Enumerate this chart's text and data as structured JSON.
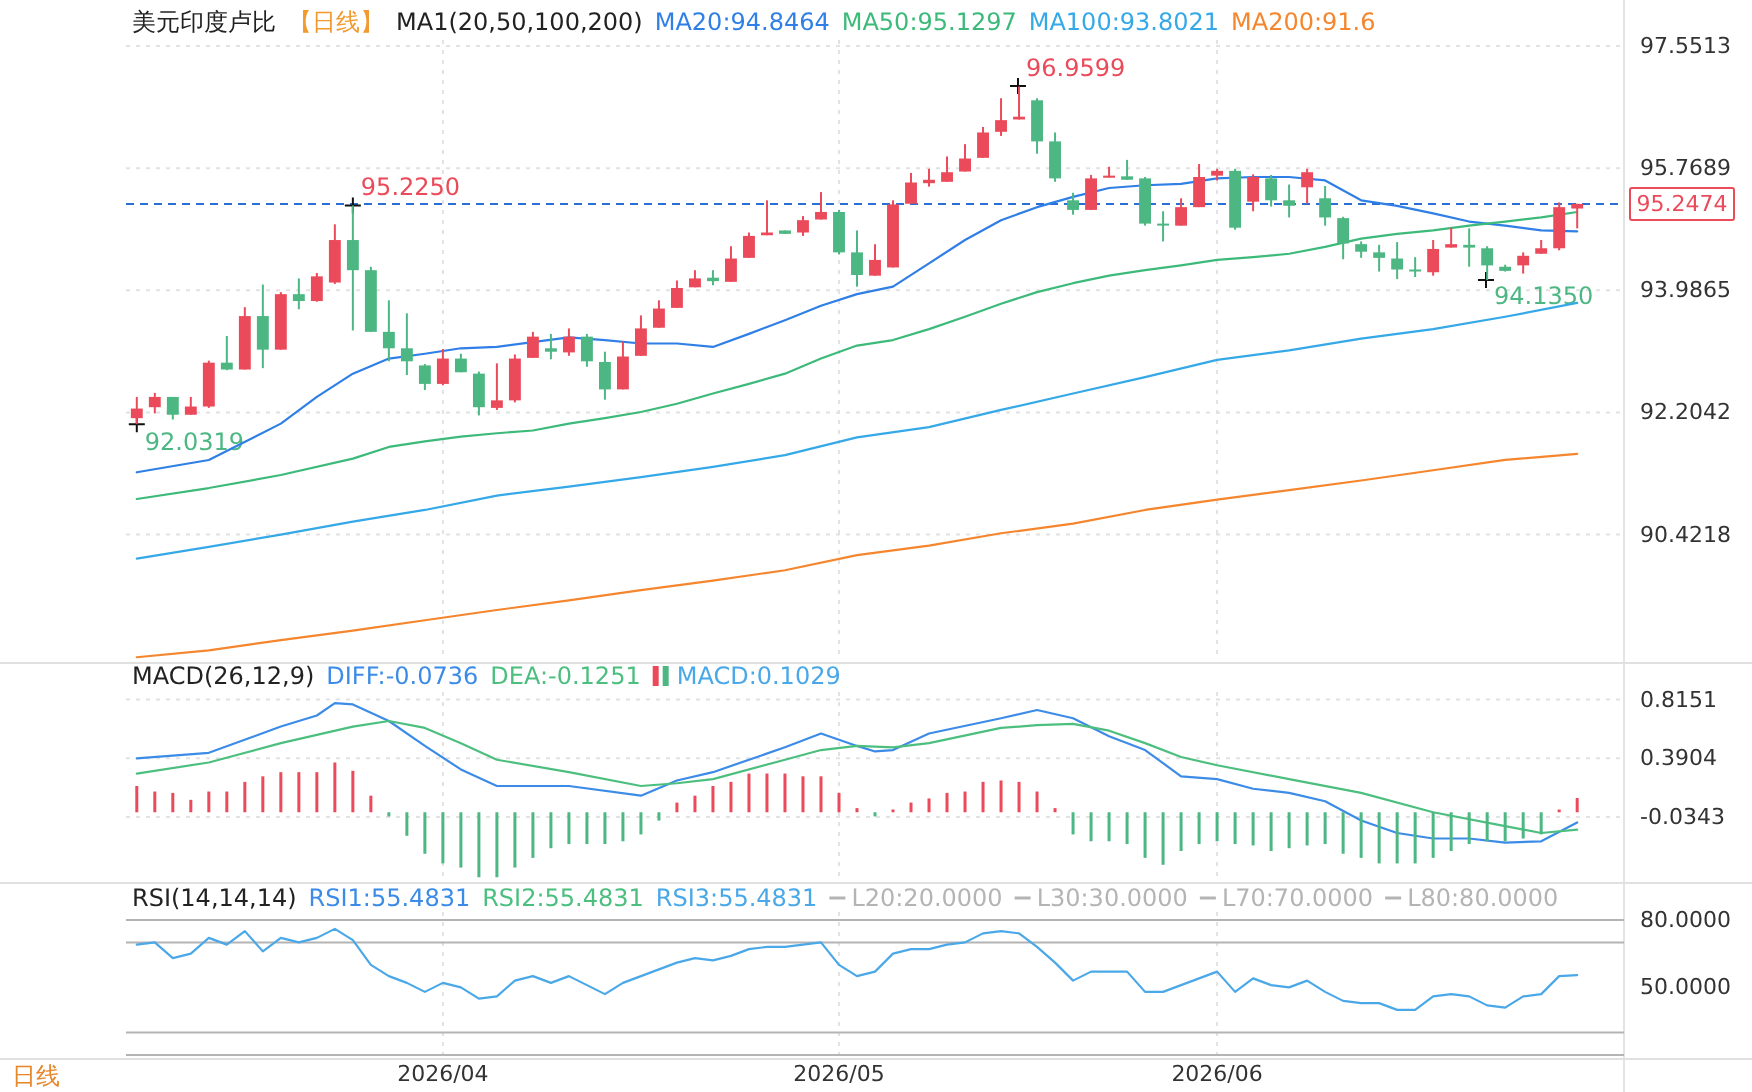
{
  "chart_data": [
    {
      "type": "candlestick",
      "title": "美元印度卢比",
      "subtitle": "【日线】",
      "legend_title": "MA1(20,50,100,200)",
      "legend": "top",
      "grid": true,
      "tick_labels": "y",
      "categories": [
        null,
        null,
        null,
        null,
        null,
        null,
        null,
        null,
        null,
        null,
        null,
        null,
        null,
        null,
        null,
        null,
        null,
        "2026/04",
        null,
        null,
        null,
        null,
        null,
        null,
        null,
        null,
        null,
        null,
        null,
        null,
        null,
        null,
        null,
        null,
        null,
        null,
        null,
        null,
        null,
        "2026/05",
        null,
        null,
        null,
        null,
        null,
        null,
        null,
        null,
        null,
        null,
        null,
        null,
        null,
        null,
        null,
        null,
        null,
        null,
        null,
        null,
        "2026/06",
        null,
        null,
        null,
        null,
        null,
        null,
        null,
        null,
        null,
        null,
        null,
        null,
        null,
        null,
        null,
        null,
        null,
        null,
        null,
        null
      ],
      "ohlc": [
        [
          92.12,
          92.43,
          92.0319,
          92.26
        ],
        [
          92.28,
          92.49,
          92.19,
          92.43
        ],
        [
          92.43,
          92.43,
          92.1,
          92.17
        ],
        [
          92.17,
          92.43,
          92.17,
          92.29
        ],
        [
          92.29,
          92.96,
          92.27,
          92.93
        ],
        [
          92.93,
          93.32,
          92.82,
          92.83
        ],
        [
          92.83,
          93.74,
          92.83,
          93.61
        ],
        [
          93.61,
          94.07,
          92.85,
          93.12
        ],
        [
          93.12,
          93.96,
          93.12,
          93.93
        ],
        [
          93.93,
          94.16,
          93.71,
          93.83
        ],
        [
          93.83,
          94.24,
          93.82,
          94.19
        ],
        [
          94.1,
          94.95,
          94.08,
          94.72
        ],
        [
          94.72,
          95.225,
          93.4,
          94.28
        ],
        [
          94.28,
          94.33,
          93.38,
          93.38
        ],
        [
          93.38,
          93.84,
          92.95,
          93.14
        ],
        [
          93.14,
          93.65,
          92.75,
          92.95
        ],
        [
          92.89,
          92.91,
          92.53,
          92.62
        ],
        [
          92.62,
          93.13,
          92.6,
          92.99
        ],
        [
          92.99,
          93.06,
          92.79,
          92.79
        ],
        [
          92.77,
          92.8,
          92.16,
          92.28
        ],
        [
          92.27,
          92.92,
          92.24,
          92.38
        ],
        [
          92.38,
          93.05,
          92.35,
          92.99
        ],
        [
          93.0,
          93.38,
          93.0,
          93.31
        ],
        [
          93.14,
          93.35,
          92.98,
          93.09
        ],
        [
          93.08,
          93.43,
          93.03,
          93.31
        ],
        [
          93.31,
          93.35,
          92.87,
          92.95
        ],
        [
          92.94,
          93.09,
          92.39,
          92.54
        ],
        [
          92.54,
          93.24,
          92.54,
          93.02
        ],
        [
          93.03,
          93.62,
          93.03,
          93.43
        ],
        [
          93.44,
          93.84,
          93.44,
          93.72
        ],
        [
          93.73,
          94.13,
          93.73,
          94.02
        ],
        [
          94.03,
          94.28,
          94.03,
          94.16
        ],
        [
          94.17,
          94.28,
          94.06,
          94.12
        ],
        [
          94.11,
          94.63,
          94.11,
          94.45
        ],
        [
          94.46,
          94.83,
          94.46,
          94.78
        ],
        [
          94.79,
          95.3,
          94.79,
          94.83
        ],
        [
          94.86,
          94.86,
          94.81,
          94.81
        ],
        [
          94.83,
          95.07,
          94.78,
          95.01
        ],
        [
          95.02,
          95.42,
          95.02,
          95.13
        ],
        [
          95.13,
          95.16,
          94.51,
          94.54
        ],
        [
          94.54,
          94.86,
          94.04,
          94.21
        ],
        [
          94.2,
          94.66,
          94.2,
          94.43
        ],
        [
          94.32,
          95.3,
          94.32,
          95.24
        ],
        [
          95.25,
          95.7,
          95.25,
          95.56
        ],
        [
          95.55,
          95.76,
          95.5,
          95.6
        ],
        [
          95.57,
          95.94,
          95.57,
          95.71
        ],
        [
          95.72,
          96.12,
          95.72,
          95.91
        ],
        [
          95.92,
          96.37,
          95.92,
          96.29
        ],
        [
          96.3,
          96.79,
          96.24,
          96.47
        ],
        [
          96.48,
          96.9599,
          96.48,
          96.52
        ],
        [
          96.76,
          96.79,
          95.98,
          96.16
        ],
        [
          96.16,
          96.29,
          95.57,
          95.62
        ],
        [
          95.3,
          95.41,
          95.09,
          95.16
        ],
        [
          95.16,
          95.67,
          95.16,
          95.62
        ],
        [
          95.63,
          95.79,
          95.63,
          95.66
        ],
        [
          95.65,
          95.89,
          95.6,
          95.6
        ],
        [
          95.62,
          95.64,
          94.93,
          94.96
        ],
        [
          94.96,
          95.14,
          94.7,
          94.95
        ],
        [
          94.93,
          95.33,
          94.93,
          95.2
        ],
        [
          95.2,
          95.83,
          95.2,
          95.64
        ],
        [
          95.66,
          95.76,
          95.59,
          95.73
        ],
        [
          95.73,
          95.76,
          94.87,
          94.9
        ],
        [
          95.28,
          95.68,
          95.14,
          95.64
        ],
        [
          95.62,
          95.67,
          95.21,
          95.3
        ],
        [
          95.3,
          95.53,
          95.05,
          95.22
        ],
        [
          95.49,
          95.76,
          95.25,
          95.71
        ],
        [
          95.33,
          95.51,
          94.93,
          95.05
        ],
        [
          95.04,
          95.06,
          94.44,
          94.67
        ],
        [
          94.66,
          94.7,
          94.46,
          94.55
        ],
        [
          94.54,
          94.65,
          94.26,
          94.46
        ],
        [
          94.45,
          94.69,
          94.15,
          94.29
        ],
        [
          94.29,
          94.47,
          94.18,
          94.27
        ],
        [
          94.25,
          94.72,
          94.2,
          94.59
        ],
        [
          94.61,
          94.9,
          94.61,
          94.66
        ],
        [
          94.65,
          94.89,
          94.33,
          94.61
        ],
        [
          94.6,
          94.63,
          94.135,
          94.35
        ],
        [
          94.33,
          94.36,
          94.26,
          94.27
        ],
        [
          94.35,
          94.54,
          94.23,
          94.49
        ],
        [
          94.52,
          94.72,
          94.52,
          94.6
        ],
        [
          94.6,
          95.27,
          94.57,
          95.2
        ],
        [
          95.18,
          95.25,
          94.89,
          95.2474
        ]
      ],
      "colors": [
        "#eb4a5a",
        "#eb4a5a",
        "#4cb782",
        "#eb4a5a",
        "#eb4a5a",
        "#4cb782",
        "#eb4a5a",
        "#4cb782",
        "#eb4a5a",
        "#4cb782",
        "#eb4a5a",
        "#eb4a5a",
        "#4cb782",
        "#4cb782",
        "#4cb782",
        "#4cb782",
        "#4cb782",
        "#eb4a5a",
        "#4cb782",
        "#4cb782",
        "#eb4a5a",
        "#eb4a5a",
        "#eb4a5a",
        "#4cb782",
        "#eb4a5a",
        "#4cb782",
        "#4cb782",
        "#eb4a5a",
        "#eb4a5a",
        "#eb4a5a",
        "#eb4a5a",
        "#eb4a5a",
        "#4cb782",
        "#eb4a5a",
        "#eb4a5a",
        "#eb4a5a",
        "#4cb782",
        "#eb4a5a",
        "#eb4a5a",
        "#4cb782",
        "#4cb782",
        "#eb4a5a",
        "#eb4a5a",
        "#eb4a5a",
        "#eb4a5a",
        "#eb4a5a",
        "#eb4a5a",
        "#eb4a5a",
        "#eb4a5a",
        "#eb4a5a",
        "#4cb782",
        "#4cb782",
        "#4cb782",
        "#eb4a5a",
        "#eb4a5a",
        "#4cb782",
        "#4cb782",
        "#4cb782",
        "#eb4a5a",
        "#eb4a5a",
        "#eb4a5a",
        "#4cb782",
        "#eb4a5a",
        "#4cb782",
        "#4cb782",
        "#eb4a5a",
        "#4cb782",
        "#4cb782",
        "#4cb782",
        "#4cb782",
        "#4cb782",
        "#4cb782",
        "#eb4a5a",
        "#eb4a5a",
        "#4cb782",
        "#4cb782",
        "#4cb782",
        "#eb4a5a",
        "#eb4a5a",
        "#eb4a5a",
        "#eb4a5a"
      ],
      "series": [
        {
          "name": "MA20:94.8464",
          "type": "line",
          "color": "#2f7fe6",
          "values": [
            91.33,
            null,
            null,
            null,
            91.51,
            null,
            null,
            null,
            92.04,
            null,
            92.43,
            null,
            92.77,
            null,
            92.99,
            null,
            93.06,
            null,
            93.14,
            null,
            93.16,
            null,
            null,
            null,
            93.3,
            null,
            93.26,
            null,
            93.21,
            null,
            93.21,
            null,
            93.16,
            null,
            93.35,
            null,
            93.55,
            null,
            93.76,
            null,
            93.93,
            null,
            94.04,
            null,
            94.38,
            null,
            94.72,
            null,
            95.01,
            null,
            95.2,
            null,
            95.35,
            null,
            95.48,
            null,
            95.52,
            null,
            95.54,
            null,
            95.62,
            null,
            95.64,
            null,
            95.64,
            null,
            95.59,
            null,
            95.3,
            null,
            95.22,
            null,
            95.11,
            null,
            94.99,
            null,
            94.93,
            null,
            94.86,
            null,
            94.8464
          ]
        },
        {
          "name": "MA50:95.1297",
          "type": "line",
          "color": "#3dba7a",
          "values": [
            90.94,
            null,
            null,
            null,
            91.1,
            null,
            null,
            null,
            91.29,
            null,
            null,
            null,
            91.53,
            null,
            91.7,
            null,
            91.78,
            null,
            91.85,
            null,
            91.9,
            null,
            91.94,
            null,
            92.04,
            null,
            92.12,
            null,
            92.21,
            null,
            92.33,
            null,
            92.48,
            null,
            92.62,
            null,
            92.77,
            null,
            92.99,
            null,
            93.18,
            null,
            93.26,
            null,
            93.42,
            null,
            93.6,
            null,
            93.79,
            null,
            93.96,
            null,
            94.09,
            null,
            94.2,
            null,
            94.28,
            null,
            94.35,
            null,
            94.43,
            null,
            94.47,
            null,
            94.52,
            null,
            94.62,
            null,
            94.74,
            null,
            94.81,
            null,
            94.86,
            null,
            94.93,
            null,
            94.99,
            null,
            95.05,
            null,
            95.1297
          ]
        },
        {
          "name": "MA100:93.8021",
          "type": "line",
          "color": "#35a8e8",
          "values": [
            90.07,
            null,
            null,
            null,
            90.24,
            null,
            null,
            null,
            90.42,
            null,
            null,
            null,
            90.61,
            null,
            null,
            null,
            90.78,
            null,
            null,
            null,
            90.99,
            null,
            null,
            null,
            91.12,
            null,
            null,
            null,
            91.26,
            null,
            null,
            null,
            91.41,
            null,
            null,
            null,
            91.58,
            null,
            null,
            null,
            91.84,
            null,
            null,
            null,
            91.99,
            null,
            null,
            null,
            92.24,
            null,
            null,
            null,
            92.48,
            null,
            null,
            null,
            92.72,
            null,
            null,
            null,
            92.97,
            null,
            null,
            null,
            93.11,
            null,
            null,
            null,
            93.28,
            null,
            null,
            null,
            93.42,
            null,
            null,
            null,
            93.6,
            null,
            null,
            null,
            93.8021
          ]
        },
        {
          "name": "MA200:91.6",
          "type": "line",
          "color": "#f5862e",
          "values": [
            88.63,
            null,
            null,
            null,
            88.73,
            null,
            null,
            null,
            88.88,
            null,
            null,
            null,
            89.02,
            null,
            null,
            null,
            89.17,
            null,
            null,
            null,
            89.32,
            null,
            null,
            null,
            89.46,
            null,
            null,
            null,
            89.61,
            null,
            null,
            null,
            89.75,
            null,
            null,
            null,
            89.9,
            null,
            null,
            null,
            90.12,
            null,
            null,
            null,
            90.26,
            null,
            null,
            null,
            90.44,
            null,
            null,
            null,
            90.58,
            null,
            null,
            null,
            90.78,
            null,
            null,
            null,
            90.93,
            null,
            null,
            null,
            91.07,
            null,
            null,
            null,
            91.21,
            null,
            null,
            null,
            91.36,
            null,
            null,
            null,
            91.51,
            null,
            null,
            null,
            91.6
          ]
        }
      ],
      "ylim": [
        88.59,
        97.64
      ],
      "yticks": [
        97.5513,
        95.7689,
        93.9865,
        92.2042,
        90.4218
      ],
      "ref_lines": [
        {
          "axis": "y",
          "value": 95.2474,
          "label": "95.2474",
          "color": "#2b6fd6",
          "line_style": "dashed"
        }
      ],
      "annotations": [
        {
          "text": "92.0319",
          "y": 92.0319
        },
        {
          "text": "95.2250",
          "y": 95.225
        },
        "96.9599",
        "94.1350"
      ]
    },
    {
      "type": "bar",
      "title": "MACD(26,12,9)",
      "legend": "top left",
      "grid": true,
      "tick_labels": "y",
      "categories": [
        null,
        null,
        null,
        null,
        null,
        null,
        null,
        null,
        null,
        null,
        null,
        null,
        null,
        null,
        null,
        null,
        null,
        "2026/04",
        null,
        null,
        null,
        null,
        null,
        null,
        null,
        null,
        null,
        null,
        null,
        null,
        null,
        null,
        null,
        null,
        null,
        null,
        null,
        null,
        null,
        "2026/05",
        null,
        null,
        null,
        null,
        null,
        null,
        null,
        null,
        null,
        null,
        null,
        null,
        null,
        null,
        null,
        null,
        null,
        null,
        null,
        null,
        "2026/06",
        null,
        null,
        null,
        null,
        null,
        null,
        null,
        null,
        null,
        null,
        null,
        null,
        null,
        null,
        null,
        null,
        null,
        null,
        null,
        null
      ],
      "series": [
        {
          "name": "DIFF:-0.0736",
          "type": "line",
          "color": "#3c8ce7",
          "values": [
            0.39,
            null,
            null,
            null,
            0.43,
            null,
            null,
            null,
            0.62,
            null,
            0.7,
            0.79,
            0.78,
            null,
            0.66,
            null,
            0.48,
            null,
            0.31,
            null,
            0.19,
            null,
            null,
            null,
            0.19,
            null,
            null,
            null,
            0.12,
            null,
            0.23,
            null,
            0.29,
            null,
            null,
            null,
            0.47,
            null,
            0.57,
            null,
            0.48,
            0.44,
            0.45,
            null,
            0.57,
            null,
            null,
            null,
            0.68,
            null,
            0.74,
            null,
            0.68,
            null,
            0.55,
            null,
            0.45,
            null,
            0.26,
            null,
            0.24,
            null,
            0.17,
            null,
            0.14,
            null,
            0.08,
            null,
            -0.06,
            null,
            -0.15,
            null,
            -0.19,
            null,
            -0.19,
            null,
            -0.22,
            null,
            -0.21,
            null,
            -0.0736
          ]
        },
        {
          "name": "DEA:-0.1251",
          "type": "line",
          "color": "#4cbf7f",
          "values": [
            0.28,
            null,
            null,
            null,
            0.36,
            null,
            null,
            null,
            0.5,
            null,
            null,
            null,
            0.62,
            null,
            0.66,
            null,
            0.61,
            null,
            0.5,
            null,
            0.38,
            null,
            null,
            null,
            0.29,
            null,
            null,
            null,
            0.19,
            null,
            0.21,
            null,
            0.24,
            null,
            null,
            null,
            0.38,
            null,
            0.45,
            null,
            0.48,
            null,
            0.47,
            null,
            0.5,
            null,
            null,
            null,
            0.61,
            null,
            0.63,
            null,
            0.64,
            null,
            0.59,
            null,
            0.5,
            null,
            0.4,
            null,
            0.34,
            null,
            null,
            null,
            0.24,
            null,
            null,
            null,
            0.14,
            null,
            null,
            null,
            0.0,
            null,
            null,
            null,
            -0.1,
            null,
            -0.15,
            null,
            -0.1251
          ]
        },
        {
          "name": "MACD:0.1029",
          "type": "bar",
          "color": "#4aa8e8",
          "values": [
            0.19,
            0.15,
            0.14,
            0.09,
            0.15,
            0.15,
            0.22,
            0.26,
            0.29,
            0.29,
            0.29,
            0.36,
            0.3,
            0.12,
            -0.03,
            -0.17,
            -0.3,
            -0.37,
            -0.4,
            -0.47,
            -0.47,
            -0.4,
            -0.33,
            -0.26,
            -0.23,
            -0.23,
            -0.23,
            -0.21,
            -0.16,
            -0.06,
            0.07,
            0.12,
            0.19,
            0.22,
            0.28,
            0.28,
            0.28,
            0.26,
            0.26,
            0.14,
            0.03,
            -0.03,
            0.02,
            0.07,
            0.1,
            0.14,
            0.15,
            0.22,
            0.23,
            0.22,
            0.15,
            0.03,
            -0.16,
            -0.21,
            -0.21,
            -0.23,
            -0.33,
            -0.38,
            -0.28,
            -0.23,
            -0.21,
            -0.23,
            -0.24,
            -0.28,
            -0.26,
            -0.24,
            -0.23,
            -0.3,
            -0.33,
            -0.37,
            -0.37,
            -0.37,
            -0.33,
            -0.28,
            -0.23,
            -0.21,
            -0.21,
            -0.19,
            -0.16,
            0.02,
            0.1029
          ],
          "colors": [
            "#eb4a5a",
            "#eb4a5a",
            "#eb4a5a",
            "#eb4a5a",
            "#eb4a5a",
            "#eb4a5a",
            "#eb4a5a",
            "#eb4a5a",
            "#eb4a5a",
            "#eb4a5a",
            "#eb4a5a",
            "#eb4a5a",
            "#eb4a5a",
            "#eb4a5a",
            "#4cb782",
            "#4cb782",
            "#4cb782",
            "#4cb782",
            "#4cb782",
            "#4cb782",
            "#4cb782",
            "#4cb782",
            "#4cb782",
            "#4cb782",
            "#4cb782",
            "#4cb782",
            "#4cb782",
            "#4cb782",
            "#4cb782",
            "#4cb782",
            "#eb4a5a",
            "#eb4a5a",
            "#eb4a5a",
            "#eb4a5a",
            "#eb4a5a",
            "#eb4a5a",
            "#eb4a5a",
            "#eb4a5a",
            "#eb4a5a",
            "#eb4a5a",
            "#eb4a5a",
            "#4cb782",
            "#eb4a5a",
            "#eb4a5a",
            "#eb4a5a",
            "#eb4a5a",
            "#eb4a5a",
            "#eb4a5a",
            "#eb4a5a",
            "#eb4a5a",
            "#eb4a5a",
            "#eb4a5a",
            "#4cb782",
            "#4cb782",
            "#4cb782",
            "#4cb782",
            "#4cb782",
            "#4cb782",
            "#4cb782",
            "#4cb782",
            "#4cb782",
            "#4cb782",
            "#4cb782",
            "#4cb782",
            "#4cb782",
            "#4cb782",
            "#4cb782",
            "#4cb782",
            "#4cb782",
            "#4cb782",
            "#4cb782",
            "#4cb782",
            "#4cb782",
            "#4cb782",
            "#4cb782",
            "#4cb782",
            "#4cb782",
            "#4cb782",
            "#4cb782",
            "#eb4a5a",
            "#eb4a5a"
          ]
        }
      ],
      "ylim": [
        -0.49,
        0.87
      ],
      "yticks": [
        0.8151,
        0.3904,
        -0.0343
      ]
    },
    {
      "type": "line",
      "title": "RSI(14,14,14)",
      "legend": "top",
      "grid": "x",
      "categories": [
        null,
        null,
        null,
        null,
        null,
        null,
        null,
        null,
        null,
        null,
        null,
        null,
        null,
        null,
        null,
        null,
        null,
        "2026/04",
        null,
        null,
        null,
        null,
        null,
        null,
        null,
        null,
        null,
        null,
        null,
        null,
        null,
        null,
        null,
        null,
        null,
        null,
        null,
        null,
        null,
        "2026/05",
        null,
        null,
        null,
        null,
        null,
        null,
        null,
        null,
        null,
        null,
        null,
        null,
        null,
        null,
        null,
        null,
        null,
        null,
        null,
        null,
        "2026/06",
        null,
        null,
        null,
        null,
        null,
        null,
        null,
        null,
        null,
        null,
        null,
        null,
        null,
        null,
        null,
        null,
        null,
        null,
        null,
        null
      ],
      "series": [
        {
          "name": "RSI1:55.4831",
          "color": "#3c8ce7",
          "values": [
            null,
            null,
            null,
            null,
            null,
            null,
            null,
            null,
            null,
            null,
            null,
            null,
            null,
            null,
            null,
            null,
            null,
            null,
            null,
            null,
            null,
            null,
            null,
            null,
            null,
            null,
            null,
            null,
            null,
            null,
            null,
            null,
            null,
            null,
            null,
            null,
            null,
            null,
            null,
            null,
            null,
            null,
            null,
            null,
            null,
            null,
            null,
            null,
            null,
            null,
            null,
            null,
            null,
            null,
            null,
            null,
            null,
            null,
            null,
            null,
            null,
            null,
            null,
            null,
            null,
            null,
            null,
            null,
            null,
            null,
            null,
            null,
            null,
            null,
            null,
            null,
            null,
            null,
            null,
            null,
            null
          ]
        },
        {
          "name": "RSI2:55.4831",
          "color": "#4cbf7f",
          "values": [
            null,
            null,
            null,
            null,
            null,
            null,
            null,
            null,
            null,
            null,
            null,
            null,
            null,
            null,
            null,
            null,
            null,
            null,
            null,
            null,
            null,
            null,
            null,
            null,
            null,
            null,
            null,
            null,
            null,
            null,
            null,
            null,
            null,
            null,
            null,
            null,
            null,
            null,
            null,
            null,
            null,
            null,
            null,
            null,
            null,
            null,
            null,
            null,
            null,
            null,
            null,
            null,
            null,
            null,
            null,
            null,
            null,
            null,
            null,
            null,
            null,
            null,
            null,
            null,
            null,
            null,
            null,
            null,
            null,
            null,
            null,
            null,
            null,
            null,
            null,
            null,
            null,
            null,
            null,
            null,
            null
          ]
        },
        {
          "name": "RSI3:55.4831",
          "color": "#4aa8e8",
          "values": [
            69,
            70,
            63,
            65,
            72,
            69,
            75,
            66,
            72,
            70,
            72,
            76,
            71,
            60,
            55,
            52,
            48,
            52,
            50,
            45,
            46,
            53,
            55,
            52,
            55,
            51,
            47,
            52,
            55,
            58,
            61,
            63,
            62,
            64,
            67,
            68,
            68,
            69,
            70,
            60,
            55,
            57,
            65,
            67,
            67,
            69,
            70,
            74,
            75,
            74,
            68,
            61,
            53,
            57,
            57,
            57,
            48,
            48,
            51,
            54,
            57,
            48,
            54,
            51,
            50,
            53,
            48,
            44,
            43,
            43,
            40,
            40,
            46,
            47,
            46,
            42,
            41,
            46,
            47,
            55,
            55.4831
          ]
        }
      ],
      "ylim": [
        19.5,
        83.5
      ],
      "yticks": [
        {
          "value": 80,
          "label": "80.0000"
        },
        {
          "value": 50,
          "label": "50.0000"
        }
      ],
      "ref_lines": [
        {
          "axis": "y",
          "value": 20,
          "label": "L20:20.0000",
          "color": "#b4b4b4"
        },
        {
          "axis": "y",
          "value": 30,
          "label": "L30:30.0000",
          "color": "#b4b4b4"
        },
        {
          "axis": "y",
          "value": 70,
          "label": "L70:70.0000",
          "color": "#b4b4b4"
        },
        {
          "axis": "y",
          "value": 80,
          "label": "L80:80.0000",
          "color": "#b4b4b4"
        }
      ],
      "annotations": [
        "日线"
      ]
    }
  ]
}
